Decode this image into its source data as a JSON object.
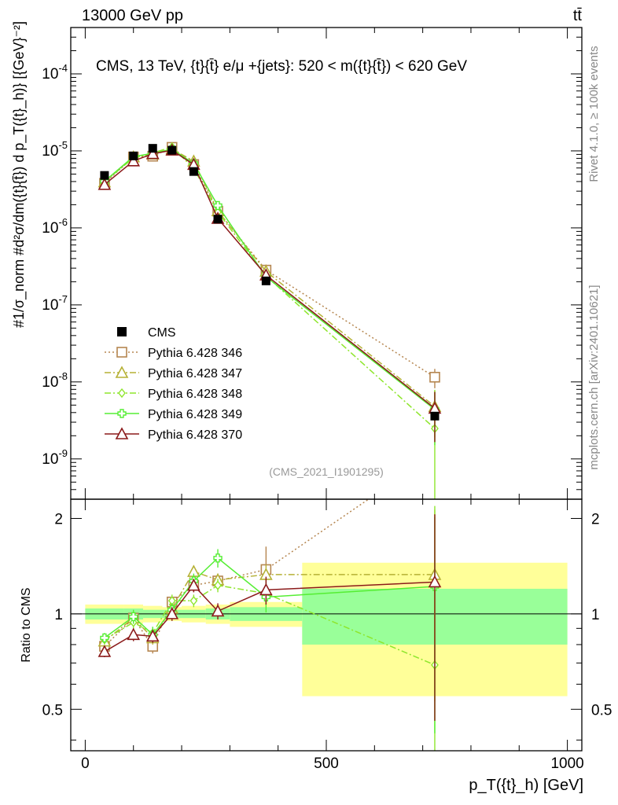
{
  "header": {
    "left": "13000 GeV pp",
    "right": "tt̄"
  },
  "side_texts": {
    "rivet": "Rivet 4.1.0, ≥ 100k events",
    "mcplots": "mcplots.cern.ch [arXiv:2401.10621]"
  },
  "chart_data": {
    "type": "line",
    "title": "CMS, 13 TeV, {t}{t̄} e/μ +{jets}: 520 < m({t}{t̄}) < 620 GeV",
    "watermark": "(CMS_2021_I1901295)",
    "xlabel": "p_T({t}_h) [GeV]",
    "ylabel": "#1/σ_norm #d²σ/dm({t}{t̄}) d p_T({t}_h)} [{GeV}⁻²]",
    "ratio_ylabel": "Ratio to CMS",
    "xlim": [
      -30,
      1030
    ],
    "ylim": [
      3e-10,
      0.0004
    ],
    "ratio_ylim": [
      0.37,
      2.3
    ],
    "x_ticks": [
      "0",
      "500",
      "1000"
    ],
    "y_ticks": [
      "10^-9",
      "10^-8",
      "10^-7",
      "10^-6",
      "10^-5",
      "10^-4"
    ],
    "ratio_y_ticks": [
      "0.5",
      "1",
      "2"
    ],
    "x": [
      40,
      100,
      140,
      180,
      225,
      275,
      375,
      725
    ],
    "bin_edges": [
      0,
      80,
      120,
      160,
      200,
      250,
      300,
      450,
      1000
    ],
    "data": {
      "name": "CMS",
      "values": [
        4.8e-06,
        8.6e-06,
        1.08e-05,
        1.02e-05,
        5.4e-06,
        1.3e-06,
        2.05e-07,
        3.6e-09
      ],
      "band_inner": [
        0.04,
        0.04,
        0.03,
        0.03,
        0.03,
        0.04,
        0.05,
        0.2
      ],
      "band_outer": [
        0.07,
        0.07,
        0.06,
        0.05,
        0.06,
        0.07,
        0.09,
        0.45
      ]
    },
    "series": [
      {
        "name": "Pythia 6.428 346",
        "color": "#b58650",
        "marker": "square",
        "dash": "2,3",
        "ratio": [
          0.79,
          0.97,
          0.79,
          1.09,
          1.23,
          1.27,
          1.38,
          3.2
        ],
        "ratio_err": [
          0.03,
          0.04,
          0.04,
          0.05,
          0.06,
          0.06,
          0.25,
          0.9
        ]
      },
      {
        "name": "Pythia 6.428 347",
        "color": "#b5b034",
        "marker": "triangle",
        "dash": "8,3,2,3",
        "ratio": [
          0.82,
          0.97,
          0.84,
          1.04,
          1.36,
          1.28,
          1.33,
          1.33
        ],
        "ratio_err": [
          0.03,
          0.04,
          0.04,
          0.05,
          0.06,
          0.06,
          0.1,
          0.8
        ]
      },
      {
        "name": "Pythia 6.428 348",
        "color": "#8ee62c",
        "marker": "diamond",
        "dash": "8,3,2,3",
        "ratio": [
          0.83,
          0.94,
          0.87,
          1.1,
          1.1,
          1.23,
          1.16,
          0.69
        ],
        "ratio_err": [
          0.03,
          0.04,
          0.04,
          0.05,
          0.05,
          0.06,
          0.1,
          1.5
        ]
      },
      {
        "name": "Pythia 6.428 349",
        "color": "#55ee33",
        "marker": "cross",
        "dash": "",
        "ratio": [
          0.84,
          0.98,
          0.86,
          1.03,
          1.27,
          1.5,
          1.13,
          1.22
        ],
        "ratio_err": [
          0.03,
          0.05,
          0.05,
          0.05,
          0.07,
          0.1,
          0.12,
          0.8
        ]
      },
      {
        "name": "Pythia 6.428 370",
        "color": "#8b1a1a",
        "marker": "triangle",
        "dash": "",
        "ratio": [
          0.76,
          0.86,
          0.85,
          1.0,
          1.23,
          1.02,
          1.19,
          1.26
        ],
        "ratio_err": [
          0.03,
          0.04,
          0.04,
          0.05,
          0.06,
          0.06,
          0.12,
          0.8
        ]
      }
    ]
  }
}
